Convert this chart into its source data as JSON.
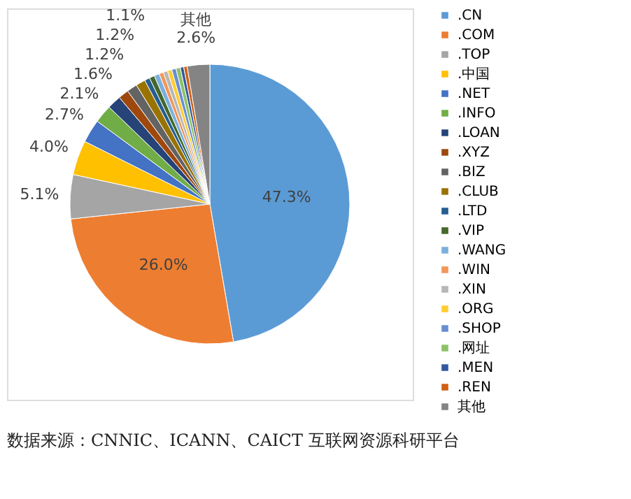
{
  "chart_data": {
    "type": "pie",
    "categories": [
      ".CN",
      ".COM",
      ".TOP",
      ".中国",
      ".NET",
      ".INFO",
      ".LOAN",
      ".XYZ",
      ".BIZ",
      ".CLUB",
      ".LTD",
      ".VIP",
      ".WANG",
      ".WIN",
      ".XIN",
      ".ORG",
      ".SHOP",
      ".网址",
      ".MEN",
      ".REN",
      "其他"
    ],
    "values": [
      47.3,
      26.0,
      5.1,
      4.0,
      2.7,
      2.1,
      1.6,
      1.2,
      1.2,
      1.1,
      0.6,
      0.6,
      0.6,
      0.5,
      0.5,
      0.5,
      0.5,
      0.5,
      0.4,
      0.4,
      2.6
    ],
    "colors": [
      "#5b9bd5",
      "#ed7d31",
      "#a5a5a5",
      "#ffc000",
      "#4472c4",
      "#70ad47",
      "#264478",
      "#9e480e",
      "#636363",
      "#997300",
      "#255e91",
      "#43682b",
      "#7cafdd",
      "#f1975a",
      "#b7b7b7",
      "#ffcd33",
      "#698ed0",
      "#8cc168",
      "#335aa1",
      "#d26012",
      "#848484"
    ],
    "value_labels": [
      "47.3%",
      "26.0%",
      "5.1%",
      "4.0%",
      "2.7%",
      "2.1%",
      "1.6%",
      "1.2%",
      "1.2%",
      "1.1%",
      null,
      null,
      null,
      null,
      null,
      null,
      null,
      null,
      null,
      null,
      "其他\n2.6%"
    ],
    "legend": "right",
    "annotations": [
      "数据来源：CNNIC、ICANN、CAICT 互联网资源科研平台"
    ]
  }
}
